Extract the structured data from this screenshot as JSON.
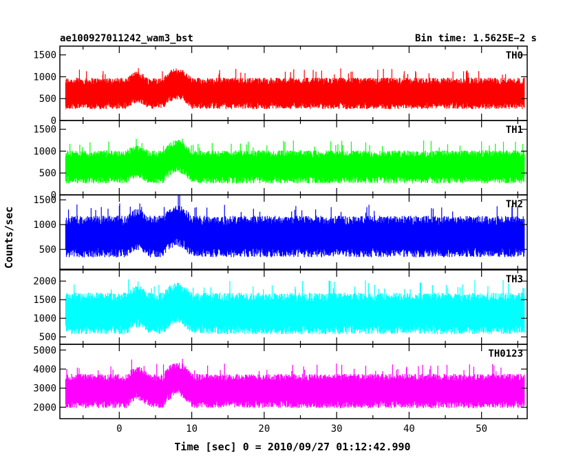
{
  "chart_data": {
    "type": "line",
    "title_left": "ae100927011242_wam3_bst",
    "title_right": "Bin time: 1.5625E−2 s",
    "xlabel": "Time [sec] 0 = 2010/09/27 01:12:42.990",
    "ylabel": "Counts/sec",
    "xlim": [
      -8.2,
      56.3
    ],
    "x_ticks": [
      0,
      10,
      20,
      30,
      40,
      50
    ],
    "panels": [
      {
        "name": "TH0",
        "color": "#ff0000",
        "ylim": [
          0,
          1700
        ],
        "y_ticks": [
          0,
          500,
          1000,
          1500
        ],
        "baseline": 620,
        "spread": 360,
        "bursts": [
          [
            1,
            4,
            140
          ],
          [
            6,
            10,
            220
          ]
        ]
      },
      {
        "name": "TH1",
        "color": "#00ff00",
        "ylim": [
          0,
          1700
        ],
        "y_ticks": [
          0,
          500,
          1000,
          1500
        ],
        "baseline": 640,
        "spread": 380,
        "bursts": [
          [
            1,
            4,
            120
          ],
          [
            6,
            10,
            240
          ]
        ]
      },
      {
        "name": "TH2",
        "color": "#0000ff",
        "ylim": [
          100,
          1600
        ],
        "y_ticks": [
          500,
          1000,
          1500
        ],
        "baseline": 760,
        "spread": 420,
        "bursts": [
          [
            1,
            4,
            140
          ],
          [
            6,
            10,
            220
          ]
        ]
      },
      {
        "name": "TH3",
        "color": "#00ffff",
        "ylim": [
          300,
          2300
        ],
        "y_ticks": [
          500,
          1000,
          1500,
          2000
        ],
        "baseline": 1130,
        "spread": 560,
        "bursts": [
          [
            1,
            4,
            180
          ],
          [
            6,
            10,
            280
          ]
        ]
      },
      {
        "name": "TH0123",
        "color": "#ff00ff",
        "ylim": [
          1400,
          5300
        ],
        "y_ticks": [
          2000,
          3000,
          4000,
          5000
        ],
        "baseline": 2850,
        "spread": 900,
        "bursts": [
          [
            1,
            4,
            400
          ],
          [
            6,
            10,
            650
          ]
        ]
      }
    ]
  }
}
